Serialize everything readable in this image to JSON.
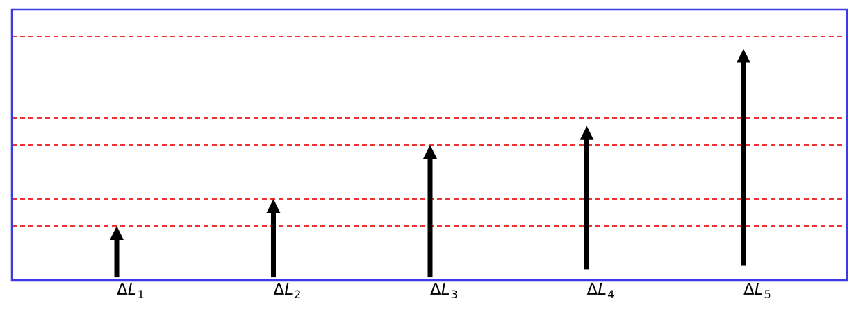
{
  "diagram": {
    "frame_color": "#3a3ae6",
    "line_color": "#ee3333",
    "arrow_color": "#000000",
    "levels": [
      0.2,
      0.3,
      0.5,
      0.6,
      0.9
    ],
    "arrows": [
      {
        "name": "delta-l-1",
        "symbol": "Δ",
        "var": "L",
        "sub": "1",
        "base": 0.01,
        "tip": 0.2
      },
      {
        "name": "delta-l-2",
        "symbol": "Δ",
        "var": "L",
        "sub": "2",
        "base": 0.01,
        "tip": 0.3
      },
      {
        "name": "delta-l-3",
        "symbol": "Δ",
        "var": "L",
        "sub": "3",
        "base": 0.01,
        "tip": 0.5
      },
      {
        "name": "delta-l-4",
        "symbol": "Δ",
        "var": "L",
        "sub": "4",
        "base": 0.04,
        "tip": 0.57
      },
      {
        "name": "delta-l-5",
        "symbol": "Δ",
        "var": "L",
        "sub": "5",
        "base": 0.055,
        "tip": 0.855
      }
    ]
  }
}
